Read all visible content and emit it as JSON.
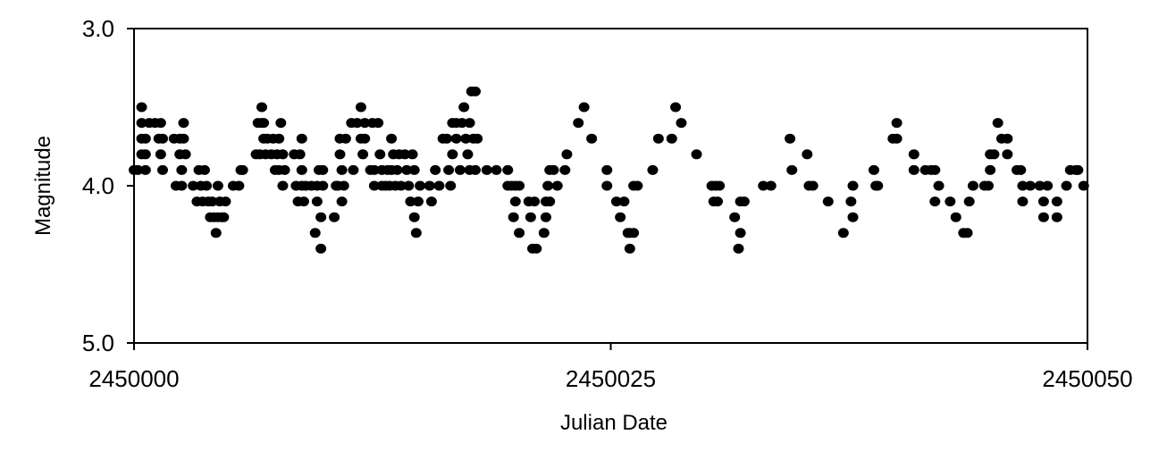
{
  "chart_data": {
    "type": "scatter",
    "title": "",
    "xlabel": "Julian Date",
    "ylabel": "Magnitude",
    "xlim": [
      2450000,
      2450050
    ],
    "ylim": [
      3.0,
      5.0
    ],
    "y_inverted": true,
    "grid": false,
    "legend": "none",
    "xticks": [
      2450000,
      2450025,
      2450050
    ],
    "xtick_labels": [
      "2450000",
      "2450025",
      "2450050"
    ],
    "yticks": [
      3.0,
      4.0,
      5.0
    ],
    "ytick_labels": [
      "3.0",
      "4.0",
      "5.0"
    ],
    "marker_color": "#000000",
    "series": [
      {
        "points": [
          [
            2450000.0,
            3.9
          ],
          [
            2450000.2,
            3.9
          ],
          [
            2450000.4,
            3.5
          ],
          [
            2450000.4,
            3.6
          ],
          [
            2450000.4,
            3.7
          ],
          [
            2450000.4,
            3.8
          ],
          [
            2450000.6,
            3.7
          ],
          [
            2450000.6,
            3.8
          ],
          [
            2450000.6,
            3.9
          ],
          [
            2450000.8,
            3.6
          ],
          [
            2450001.1,
            3.6
          ],
          [
            2450001.3,
            3.7
          ],
          [
            2450001.4,
            3.6
          ],
          [
            2450001.4,
            3.8
          ],
          [
            2450001.5,
            3.9
          ],
          [
            2450001.5,
            3.7
          ],
          [
            2450002.1,
            3.7
          ],
          [
            2450002.2,
            4.0
          ],
          [
            2450002.4,
            3.8
          ],
          [
            2450002.4,
            3.7
          ],
          [
            2450002.5,
            4.0
          ],
          [
            2450002.5,
            3.9
          ],
          [
            2450002.6,
            3.6
          ],
          [
            2450002.6,
            3.7
          ],
          [
            2450002.7,
            3.8
          ],
          [
            2450003.1,
            4.0
          ],
          [
            2450003.3,
            4.1
          ],
          [
            2450003.4,
            3.9
          ],
          [
            2450003.5,
            4.0
          ],
          [
            2450003.6,
            4.1
          ],
          [
            2450003.7,
            3.9
          ],
          [
            2450003.8,
            4.0
          ],
          [
            2450003.9,
            4.1
          ],
          [
            2450004.0,
            4.2
          ],
          [
            2450004.1,
            4.1
          ],
          [
            2450004.2,
            4.2
          ],
          [
            2450004.3,
            4.3
          ],
          [
            2450004.4,
            4.2
          ],
          [
            2450004.4,
            4.0
          ],
          [
            2450004.5,
            4.1
          ],
          [
            2450004.6,
            4.2
          ],
          [
            2450004.7,
            4.2
          ],
          [
            2450004.8,
            4.1
          ],
          [
            2450005.2,
            4.0
          ],
          [
            2450005.5,
            4.0
          ],
          [
            2450005.6,
            3.9
          ],
          [
            2450005.7,
            3.9
          ],
          [
            2450006.4,
            3.8
          ],
          [
            2450006.5,
            3.6
          ],
          [
            2450006.6,
            3.8
          ],
          [
            2450006.7,
            3.6
          ],
          [
            2450006.7,
            3.5
          ],
          [
            2450006.8,
            3.7
          ],
          [
            2450006.8,
            3.6
          ],
          [
            2450006.9,
            3.8
          ],
          [
            2450007.0,
            3.7
          ],
          [
            2450007.2,
            3.8
          ],
          [
            2450007.3,
            3.7
          ],
          [
            2450007.4,
            3.9
          ],
          [
            2450007.5,
            3.8
          ],
          [
            2450007.6,
            3.9
          ],
          [
            2450007.6,
            3.7
          ],
          [
            2450007.7,
            3.6
          ],
          [
            2450007.8,
            4.0
          ],
          [
            2450007.8,
            3.8
          ],
          [
            2450007.9,
            3.9
          ],
          [
            2450008.4,
            3.8
          ],
          [
            2450008.5,
            4.0
          ],
          [
            2450008.6,
            4.1
          ],
          [
            2450008.7,
            3.8
          ],
          [
            2450008.8,
            4.0
          ],
          [
            2450008.8,
            3.9
          ],
          [
            2450008.8,
            3.7
          ],
          [
            2450008.9,
            4.1
          ],
          [
            2450009.0,
            4.0
          ],
          [
            2450009.3,
            4.0
          ],
          [
            2450009.5,
            4.3
          ],
          [
            2450009.6,
            4.1
          ],
          [
            2450009.6,
            4.0
          ],
          [
            2450009.7,
            3.9
          ],
          [
            2450009.8,
            4.4
          ],
          [
            2450009.8,
            4.2
          ],
          [
            2450009.9,
            4.0
          ],
          [
            2450009.9,
            3.9
          ],
          [
            2450010.5,
            4.2
          ],
          [
            2450010.6,
            4.0
          ],
          [
            2450010.7,
            4.0
          ],
          [
            2450010.8,
            3.7
          ],
          [
            2450010.8,
            3.8
          ],
          [
            2450010.9,
            3.9
          ],
          [
            2450010.9,
            4.1
          ],
          [
            2450011.0,
            4.0
          ],
          [
            2450011.1,
            3.7
          ],
          [
            2450011.4,
            3.6
          ],
          [
            2450011.5,
            3.9
          ],
          [
            2450011.7,
            3.6
          ],
          [
            2450011.9,
            3.7
          ],
          [
            2450011.9,
            3.5
          ],
          [
            2450012.0,
            3.8
          ],
          [
            2450012.1,
            3.6
          ],
          [
            2450012.1,
            3.7
          ],
          [
            2450012.4,
            3.9
          ],
          [
            2450012.5,
            3.6
          ],
          [
            2450012.6,
            3.9
          ],
          [
            2450012.6,
            4.0
          ],
          [
            2450012.8,
            3.6
          ],
          [
            2450012.9,
            3.8
          ],
          [
            2450013.0,
            4.0
          ],
          [
            2450013.0,
            3.9
          ],
          [
            2450013.2,
            4.0
          ],
          [
            2450013.3,
            3.9
          ],
          [
            2450013.4,
            4.0
          ],
          [
            2450013.5,
            3.7
          ],
          [
            2450013.5,
            3.9
          ],
          [
            2450013.6,
            3.8
          ],
          [
            2450013.7,
            4.0
          ],
          [
            2450013.8,
            3.9
          ],
          [
            2450013.9,
            3.8
          ],
          [
            2450014.0,
            4.0
          ],
          [
            2450014.2,
            3.8
          ],
          [
            2450014.3,
            3.9
          ],
          [
            2450014.4,
            4.0
          ],
          [
            2450014.5,
            4.1
          ],
          [
            2450014.6,
            3.8
          ],
          [
            2450014.7,
            4.2
          ],
          [
            2450014.7,
            3.9
          ],
          [
            2450014.8,
            4.3
          ],
          [
            2450014.9,
            4.1
          ],
          [
            2450015.0,
            4.0
          ],
          [
            2450015.5,
            4.0
          ],
          [
            2450015.6,
            4.1
          ],
          [
            2450015.8,
            3.9
          ],
          [
            2450016.0,
            4.0
          ],
          [
            2450016.2,
            3.7
          ],
          [
            2450016.4,
            3.7
          ],
          [
            2450016.5,
            3.9
          ],
          [
            2450016.6,
            4.0
          ],
          [
            2450016.7,
            3.6
          ],
          [
            2450016.7,
            3.8
          ],
          [
            2450016.9,
            3.7
          ],
          [
            2450016.9,
            3.6
          ],
          [
            2450017.1,
            3.9
          ],
          [
            2450017.2,
            3.6
          ],
          [
            2450017.3,
            3.5
          ],
          [
            2450017.4,
            3.7
          ],
          [
            2450017.5,
            3.8
          ],
          [
            2450017.6,
            3.6
          ],
          [
            2450017.6,
            3.9
          ],
          [
            2450017.7,
            3.4
          ],
          [
            2450017.8,
            3.7
          ],
          [
            2450017.9,
            3.9
          ],
          [
            2450017.9,
            3.4
          ],
          [
            2450018.0,
            3.7
          ],
          [
            2450018.5,
            3.9
          ],
          [
            2450019.0,
            3.9
          ],
          [
            2450019.6,
            3.9
          ],
          [
            2450019.6,
            4.0
          ],
          [
            2450019.8,
            4.0
          ],
          [
            2450019.9,
            4.2
          ],
          [
            2450020.0,
            4.0
          ],
          [
            2450020.0,
            4.1
          ],
          [
            2450020.2,
            4.0
          ],
          [
            2450020.2,
            4.3
          ],
          [
            2450020.7,
            4.1
          ],
          [
            2450020.8,
            4.2
          ],
          [
            2450020.9,
            4.4
          ],
          [
            2450021.0,
            4.1
          ],
          [
            2450021.1,
            4.4
          ],
          [
            2450021.5,
            4.3
          ],
          [
            2450021.6,
            4.2
          ],
          [
            2450021.6,
            4.1
          ],
          [
            2450021.7,
            4.0
          ],
          [
            2450021.8,
            3.9
          ],
          [
            2450021.8,
            4.1
          ],
          [
            2450022.0,
            3.9
          ],
          [
            2450022.2,
            4.0
          ],
          [
            2450022.6,
            3.9
          ],
          [
            2450022.7,
            3.8
          ],
          [
            2450023.3,
            3.6
          ],
          [
            2450023.6,
            3.5
          ],
          [
            2450024.0,
            3.7
          ],
          [
            2450024.8,
            3.9
          ],
          [
            2450024.8,
            4.0
          ],
          [
            2450025.3,
            4.1
          ],
          [
            2450025.5,
            4.2
          ],
          [
            2450025.7,
            4.1
          ],
          [
            2450025.9,
            4.3
          ],
          [
            2450026.0,
            4.3
          ],
          [
            2450026.0,
            4.4
          ],
          [
            2450026.2,
            4.3
          ],
          [
            2450026.2,
            4.0
          ],
          [
            2450026.4,
            4.0
          ],
          [
            2450027.2,
            3.9
          ],
          [
            2450027.5,
            3.7
          ],
          [
            2450028.2,
            3.7
          ],
          [
            2450028.4,
            3.5
          ],
          [
            2450028.7,
            3.6
          ],
          [
            2450029.5,
            3.8
          ],
          [
            2450030.3,
            4.0
          ],
          [
            2450030.4,
            4.1
          ],
          [
            2450030.5,
            4.0
          ],
          [
            2450030.6,
            4.1
          ],
          [
            2450030.7,
            4.0
          ],
          [
            2450031.5,
            4.2
          ],
          [
            2450031.7,
            4.4
          ],
          [
            2450031.8,
            4.3
          ],
          [
            2450031.8,
            4.1
          ],
          [
            2450032.0,
            4.1
          ],
          [
            2450033.0,
            4.0
          ],
          [
            2450033.4,
            4.0
          ],
          [
            2450034.4,
            3.7
          ],
          [
            2450034.5,
            3.9
          ],
          [
            2450035.3,
            3.8
          ],
          [
            2450035.4,
            4.0
          ],
          [
            2450035.6,
            4.0
          ],
          [
            2450036.4,
            4.1
          ],
          [
            2450037.2,
            4.3
          ],
          [
            2450037.6,
            4.1
          ],
          [
            2450037.7,
            4.0
          ],
          [
            2450037.7,
            4.2
          ],
          [
            2450038.8,
            3.9
          ],
          [
            2450038.9,
            4.0
          ],
          [
            2450039.0,
            4.0
          ],
          [
            2450039.8,
            3.7
          ],
          [
            2450040.0,
            3.7
          ],
          [
            2450040.0,
            3.6
          ],
          [
            2450040.9,
            3.9
          ],
          [
            2450040.9,
            3.8
          ],
          [
            2450041.5,
            3.9
          ],
          [
            2450041.8,
            3.9
          ],
          [
            2450042.0,
            3.9
          ],
          [
            2450042.0,
            4.1
          ],
          [
            2450042.2,
            4.0
          ],
          [
            2450042.8,
            4.1
          ],
          [
            2450043.1,
            4.2
          ],
          [
            2450043.5,
            4.3
          ],
          [
            2450043.7,
            4.3
          ],
          [
            2450043.8,
            4.1
          ],
          [
            2450044.0,
            4.0
          ],
          [
            2450044.6,
            4.0
          ],
          [
            2450044.8,
            4.0
          ],
          [
            2450044.9,
            3.8
          ],
          [
            2450044.9,
            3.9
          ],
          [
            2450045.1,
            3.8
          ],
          [
            2450045.3,
            3.6
          ],
          [
            2450045.5,
            3.7
          ],
          [
            2450045.8,
            3.8
          ],
          [
            2450045.8,
            3.7
          ],
          [
            2450046.3,
            3.9
          ],
          [
            2450046.5,
            3.9
          ],
          [
            2450046.6,
            4.0
          ],
          [
            2450046.6,
            4.1
          ],
          [
            2450047.0,
            4.0
          ],
          [
            2450047.5,
            4.0
          ],
          [
            2450047.7,
            4.2
          ],
          [
            2450047.7,
            4.1
          ],
          [
            2450047.9,
            4.0
          ],
          [
            2450048.4,
            4.2
          ],
          [
            2450048.4,
            4.1
          ],
          [
            2450048.9,
            4.0
          ],
          [
            2450049.1,
            3.9
          ],
          [
            2450049.4,
            3.9
          ],
          [
            2450049.5,
            3.9
          ],
          [
            2450049.8,
            4.0
          ]
        ]
      }
    ]
  }
}
